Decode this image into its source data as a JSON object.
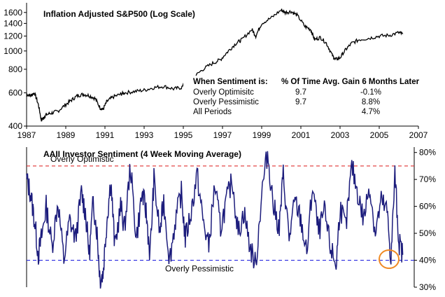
{
  "chart_data": [
    {
      "type": "line",
      "title": "Inflation Adjusted S&P500 (Log Scale)",
      "xlabel": "",
      "ylabel": "",
      "x_ticks": [
        "1987",
        "1989",
        "1991",
        "1993",
        "1995",
        "1997",
        "1999",
        "2001",
        "2003",
        "2005",
        "2007"
      ],
      "x_range": [
        1987,
        2007
      ],
      "y_ticks": [
        "400",
        "600",
        "800",
        "1000",
        "1200",
        "1400",
        "1600"
      ],
      "y_range": [
        400,
        1800
      ],
      "y_scale": "log",
      "grid": false,
      "series": [
        {
          "color": "#000000",
          "x": [
            1987.0,
            1987.2,
            1987.4,
            1987.6,
            1987.75,
            1987.85,
            1988.0,
            1988.3,
            1988.6,
            1989.0,
            1989.3,
            1989.6,
            1989.9,
            1990.2,
            1990.5,
            1990.75,
            1990.9,
            1991.1,
            1991.4,
            1991.8,
            1992.0,
            1992.5,
            1993.0,
            1993.5,
            1994.0,
            1994.5,
            1994.9,
            1995.2,
            1995.5,
            1996.0,
            1996.5,
            1996.9,
            1997.3,
            1997.7,
            1998.0,
            1998.5,
            1998.7,
            1999.0,
            1999.5,
            2000.0,
            2000.2,
            2000.5,
            2000.8,
            2001.2,
            2001.5,
            2001.7,
            2002.0,
            2002.3,
            2002.6,
            2002.75,
            2003.0,
            2003.3,
            2003.6,
            2004.0,
            2004.5,
            2005.0,
            2005.5,
            2006.0,
            2006.2
          ],
          "values": [
            590,
            580,
            600,
            520,
            430,
            440,
            460,
            470,
            480,
            520,
            550,
            580,
            590,
            580,
            560,
            500,
            490,
            540,
            570,
            590,
            600,
            610,
            620,
            640,
            650,
            630,
            640,
            680,
            720,
            800,
            860,
            900,
            1000,
            1100,
            1150,
            1300,
            1200,
            1400,
            1500,
            1650,
            1600,
            1620,
            1550,
            1350,
            1300,
            1150,
            1180,
            1100,
            950,
            900,
            920,
            1020,
            1100,
            1150,
            1170,
            1200,
            1210,
            1250,
            1230
          ]
        }
      ]
    },
    {
      "type": "line",
      "title": "AAII Investor Sentiment (4 Week Moving Average)",
      "xlabel": "",
      "ylabel": "",
      "y_ticks": [
        "30%",
        "40%",
        "50%",
        "60%",
        "70%",
        "80%"
      ],
      "y_range": [
        30,
        82
      ],
      "x_range": [
        1987,
        2007
      ],
      "grid": false,
      "threshold_lines": [
        {
          "label": "Overly Optimistic",
          "value": 75,
          "color": "#e03030"
        },
        {
          "label": "Overly Pessimistic",
          "value": 40,
          "color": "#2a2ae0"
        }
      ],
      "series": [
        {
          "color": "#1c1c7c",
          "x": [
            1987.0,
            1987.2,
            1987.4,
            1987.6,
            1987.8,
            1988.0,
            1988.3,
            1988.6,
            1988.9,
            1989.2,
            1989.5,
            1989.8,
            1990.0,
            1990.2,
            1990.4,
            1990.6,
            1990.75,
            1990.9,
            1991.1,
            1991.3,
            1991.5,
            1991.8,
            1992.0,
            1992.3,
            1992.6,
            1992.9,
            1993.1,
            1993.3,
            1993.5,
            1993.8,
            1994.0,
            1994.3,
            1994.6,
            1994.9,
            1995.1,
            1995.4,
            1995.7,
            1996.0,
            1996.3,
            1996.6,
            1996.9,
            1997.2,
            1997.5,
            1997.8,
            1998.1,
            1998.4,
            1998.7,
            1999.0,
            1999.3,
            1999.6,
            1999.9,
            2000.1,
            2000.4,
            2000.7,
            2001.0,
            2001.3,
            2001.6,
            2001.9,
            2002.2,
            2002.5,
            2002.8,
            2003.0,
            2003.3,
            2003.6,
            2003.9,
            2004.2,
            2004.5,
            2004.8,
            2005.1,
            2005.4,
            2005.6,
            2005.8,
            2006.0,
            2006.2
          ],
          "values": [
            70,
            65,
            55,
            42,
            50,
            60,
            45,
            62,
            40,
            55,
            48,
            65,
            58,
            42,
            62,
            50,
            33,
            35,
            55,
            70,
            45,
            60,
            52,
            75,
            48,
            65,
            58,
            42,
            70,
            50,
            62,
            40,
            55,
            65,
            48,
            58,
            72,
            55,
            45,
            68,
            52,
            62,
            70,
            50,
            58,
            45,
            38,
            65,
            80,
            60,
            52,
            72,
            48,
            62,
            55,
            42,
            68,
            50,
            58,
            45,
            38,
            60,
            52,
            75,
            65,
            55,
            68,
            50,
            62,
            58,
            40,
            72,
            47,
            42
          ]
        }
      ],
      "annotation": "highlight circle around latest reading"
    }
  ],
  "table": {
    "headers": [
      "When Sentiment is:",
      "% Of Time",
      "Avg. Gain 6 Months Later"
    ],
    "rows": [
      [
        "Overly Optimisitc",
        "9.7",
        "-0.1%"
      ],
      [
        "Overly Pessimistic",
        "9.7",
        "8.8%"
      ],
      [
        "All Periods",
        "",
        "4.7%"
      ]
    ]
  }
}
